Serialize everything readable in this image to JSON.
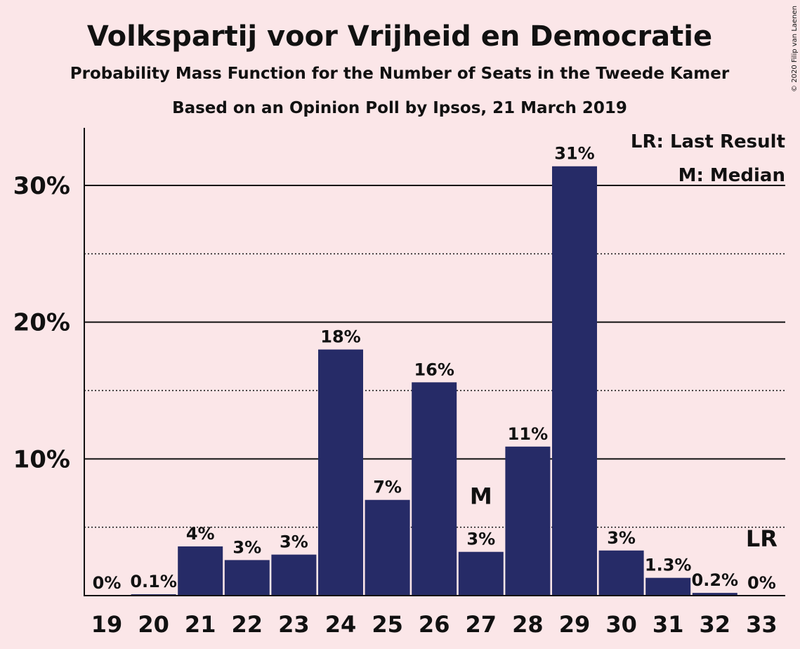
{
  "title": "Volkspartij voor Vrijheid en Democratie",
  "subtitle1": "Probability Mass Function for the Number of Seats in the Tweede Kamer",
  "subtitle2": "Based on an Opinion Poll by Ipsos, 21 March 2019",
  "copyright": "© 2020 Filip van Laenen",
  "legend": {
    "last_result": "LR: Last Result",
    "median": "M: Median"
  },
  "colors": {
    "background": "#fbe6e8",
    "bar": "#262b67",
    "text": "#111111"
  },
  "chart_data": {
    "type": "bar",
    "categories": [
      "19",
      "20",
      "21",
      "22",
      "23",
      "24",
      "25",
      "26",
      "27",
      "28",
      "29",
      "30",
      "31",
      "32",
      "33"
    ],
    "values": [
      0,
      0.1,
      3.6,
      2.6,
      3.0,
      18.0,
      7.0,
      15.6,
      3.2,
      10.9,
      31.4,
      3.3,
      1.3,
      0.2,
      0
    ],
    "labels": [
      "0%",
      "0.1%",
      "4%",
      "3%",
      "3%",
      "18%",
      "7%",
      "16%",
      "3%",
      "11%",
      "31%",
      "3%",
      "1.3%",
      "0.2%",
      "0%"
    ],
    "ylim": [
      0,
      34
    ],
    "yticks_major": [
      10,
      20,
      30
    ],
    "ytick_labels": [
      "10%",
      "20%",
      "30%"
    ],
    "yticks_minor": [
      5,
      15,
      25
    ],
    "median": {
      "category": "27",
      "label": "M"
    },
    "last_result": {
      "category": "33",
      "label": "LR"
    },
    "xlabel": "",
    "ylabel": ""
  }
}
